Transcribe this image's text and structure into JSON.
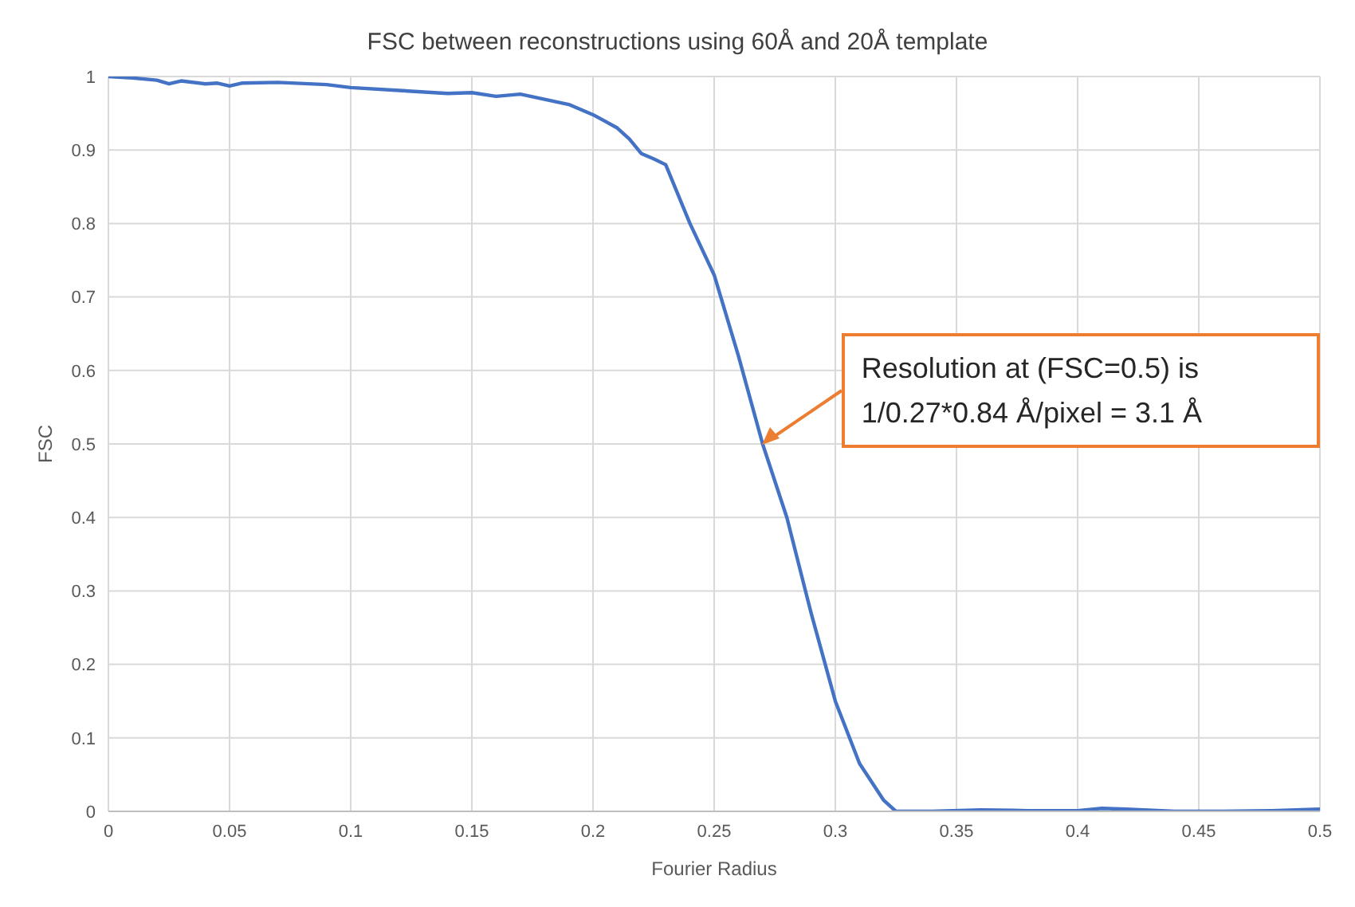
{
  "chart_data": {
    "type": "line",
    "title": "FSC between reconstructions using 60Å and 20Å template",
    "xlabel": "Fourier Radius",
    "ylabel": "FSC",
    "x": [
      0,
      0.01,
      0.02,
      0.025,
      0.03,
      0.04,
      0.045,
      0.05,
      0.055,
      0.07,
      0.09,
      0.1,
      0.12,
      0.14,
      0.15,
      0.16,
      0.17,
      0.18,
      0.19,
      0.2,
      0.21,
      0.215,
      0.22,
      0.225,
      0.23,
      0.24,
      0.25,
      0.26,
      0.27,
      0.28,
      0.29,
      0.3,
      0.31,
      0.32,
      0.325,
      0.34,
      0.36,
      0.38,
      0.4,
      0.41,
      0.42,
      0.44,
      0.46,
      0.48,
      0.5
    ],
    "series": [
      {
        "color": "#4472c4",
        "values": [
          1.0,
          0.998,
          0.995,
          0.99,
          0.994,
          0.99,
          0.991,
          0.987,
          0.991,
          0.992,
          0.989,
          0.985,
          0.981,
          0.977,
          0.978,
          0.973,
          0.976,
          0.969,
          0.962,
          0.948,
          0.93,
          0.915,
          0.895,
          0.888,
          0.88,
          0.8,
          0.73,
          0.62,
          0.5,
          0.4,
          0.27,
          0.15,
          0.065,
          0.015,
          0,
          0,
          0.002,
          0.001,
          0.001,
          0.004,
          0.003,
          0,
          0,
          0.001,
          0.003
        ]
      }
    ],
    "xlim": [
      0,
      0.5
    ],
    "xticks": [
      0,
      0.05,
      0.1,
      0.15,
      0.2,
      0.25,
      0.3,
      0.35,
      0.4,
      0.45,
      0.5
    ],
    "ylim": [
      0,
      1
    ],
    "yticks": [
      0,
      0.1,
      0.2,
      0.3,
      0.4,
      0.5,
      0.6,
      0.7,
      0.8,
      0.9,
      1
    ],
    "grid": true,
    "marker": "none",
    "line_style": "solid",
    "annotations": [
      {
        "text": "Resolution at (FSC=0.5) is 1/0.27*0.84 Å/pixel = 3.1 Å",
        "x": 0.27,
        "y": 0.5
      }
    ]
  }
}
